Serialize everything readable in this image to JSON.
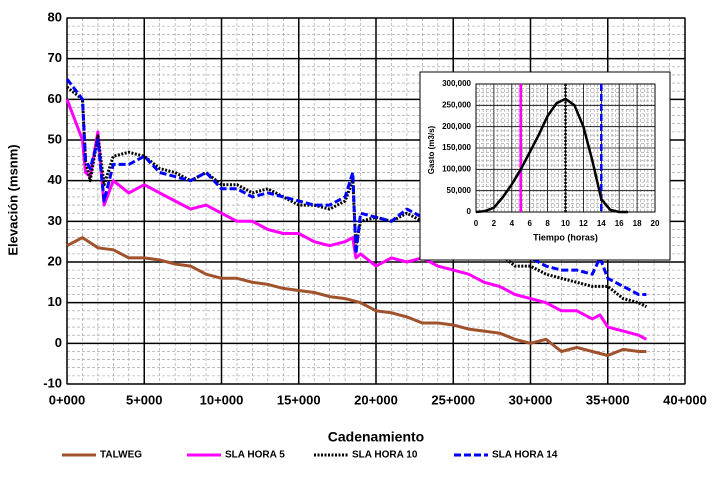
{
  "chart_data": [
    {
      "type": "line",
      "x_label": "Cadenamiento",
      "y_label": "Elevación (msnm)",
      "xlim": [
        0,
        40000
      ],
      "ylim": [
        -10,
        80
      ],
      "xticks": [
        {
          "value": 0,
          "label": "0+000"
        },
        {
          "value": 5000,
          "label": "5+000"
        },
        {
          "value": 10000,
          "label": "10+000"
        },
        {
          "value": 15000,
          "label": "15+000"
        },
        {
          "value": 20000,
          "label": "20+000"
        },
        {
          "value": 25000,
          "label": "25+000"
        },
        {
          "value": 30000,
          "label": "30+000"
        },
        {
          "value": 35000,
          "label": "35+000"
        },
        {
          "value": 40000,
          "label": "40+000"
        }
      ],
      "yticks": [
        -10,
        0,
        10,
        20,
        30,
        40,
        50,
        60,
        70,
        80
      ],
      "grid": true,
      "minor_grid": true,
      "legend": "bottom",
      "series": [
        {
          "name": "TALWEG",
          "color": "#a0522d",
          "style": "solid",
          "x": [
            0,
            1000,
            2000,
            3000,
            4000,
            5000,
            6000,
            7000,
            8000,
            9000,
            10000,
            11000,
            12000,
            13000,
            14000,
            15000,
            16000,
            17000,
            18000,
            19000,
            20000,
            21000,
            22000,
            23000,
            24000,
            25000,
            26000,
            27000,
            28000,
            29000,
            30000,
            31000,
            32000,
            33000,
            34000,
            35000,
            36000,
            37000,
            37500
          ],
          "values": [
            24,
            26,
            23.5,
            23,
            21,
            21,
            20.5,
            19.5,
            19,
            17,
            16,
            16,
            15,
            14.5,
            13.5,
            13,
            12.5,
            11.5,
            11,
            10,
            8,
            7.5,
            6.5,
            5,
            5,
            4.5,
            3.5,
            3,
            2.5,
            1,
            0,
            1,
            -2,
            -1,
            -2,
            -3,
            -1.5,
            -2,
            -2
          ]
        },
        {
          "name": "SLA HORA 5",
          "color": "#ff00ff",
          "style": "solid",
          "x": [
            0,
            1000,
            1200,
            1500,
            2000,
            2400,
            3000,
            4000,
            5000,
            6000,
            7000,
            8000,
            9000,
            10000,
            11000,
            12000,
            13000,
            14000,
            15000,
            16000,
            17000,
            18000,
            18500,
            18700,
            19000,
            20000,
            21000,
            22000,
            23000,
            24000,
            25000,
            26000,
            27000,
            28000,
            29000,
            30000,
            31000,
            32000,
            33000,
            34000,
            34500,
            35000,
            36000,
            37000,
            37500
          ],
          "values": [
            60,
            50,
            42,
            41,
            52,
            34,
            40,
            37,
            39,
            37,
            35,
            33,
            34,
            32,
            30,
            30,
            28,
            27,
            27,
            25,
            24,
            25,
            26,
            21,
            22,
            19,
            21,
            20,
            21,
            19,
            18,
            17,
            15,
            14,
            12,
            11,
            10,
            8,
            8,
            6,
            7,
            4,
            3,
            2,
            1
          ]
        },
        {
          "name": "SLA HORA 10",
          "color": "#000000",
          "style": "dotted",
          "x": [
            0,
            1000,
            1200,
            1500,
            2000,
            2400,
            3000,
            4000,
            5000,
            6000,
            7000,
            8000,
            9000,
            10000,
            11000,
            12000,
            13000,
            14000,
            15000,
            16000,
            17000,
            18000,
            18500,
            18700,
            19000,
            20000,
            21000,
            22000,
            23000,
            24000,
            25000,
            26000,
            27000,
            28000,
            29000,
            30000,
            31000,
            32000,
            33000,
            34000,
            35000,
            36000,
            37000,
            37500
          ],
          "values": [
            63,
            60,
            45,
            40,
            51,
            39,
            46,
            47,
            46,
            43,
            42,
            40,
            42,
            39,
            39,
            37,
            38,
            36,
            34,
            34,
            33,
            35,
            40,
            24,
            30,
            31,
            30,
            32,
            30,
            28,
            27,
            25,
            23,
            22,
            19,
            19,
            17,
            16,
            15,
            14,
            14,
            11,
            10,
            9
          ]
        },
        {
          "name": "SLA HORA 14",
          "color": "#0000ff",
          "style": "dashed",
          "x": [
            0,
            1000,
            1200,
            1500,
            2000,
            2400,
            3000,
            4000,
            5000,
            6000,
            7000,
            8000,
            9000,
            10000,
            11000,
            12000,
            13000,
            14000,
            15000,
            16000,
            17000,
            18000,
            18500,
            18700,
            19000,
            20000,
            21000,
            22000,
            23000,
            24000,
            25000,
            26000,
            27000,
            28000,
            29000,
            30000,
            31000,
            32000,
            33000,
            34000,
            34500,
            35000,
            36000,
            37000,
            37500
          ],
          "values": [
            65,
            60,
            45,
            43,
            50,
            35,
            44,
            44,
            46,
            42,
            41,
            40,
            42,
            38,
            38,
            36,
            37,
            36,
            35,
            34,
            34,
            36,
            42,
            22,
            32,
            31,
            30,
            33,
            31,
            29,
            28,
            26,
            25,
            24,
            21,
            21,
            19,
            18,
            18,
            17,
            21,
            16,
            14,
            12,
            12
          ]
        }
      ]
    },
    {
      "type": "line",
      "x_label": "Tiempo (horas)",
      "y_label": "Gasto (m3/s)",
      "xlim": [
        0,
        20
      ],
      "ylim": [
        0,
        300000
      ],
      "xticks": [
        0,
        2,
        4,
        6,
        8,
        10,
        12,
        14,
        16,
        18,
        20
      ],
      "yticks": [
        0,
        {
          "value": 50000,
          "label": "50,000"
        },
        {
          "value": 100000,
          "label": "100,000"
        },
        {
          "value": 150000,
          "label": "150,000"
        },
        {
          "value": 200000,
          "label": "200,000"
        },
        {
          "value": 250000,
          "label": "250,000"
        },
        {
          "value": 300000,
          "label": "300,000"
        }
      ],
      "grid": true,
      "minor_grid": true,
      "series": [
        {
          "color": "#000000",
          "style": "solid",
          "x": [
            0,
            1,
            2,
            3,
            4,
            5,
            6,
            7,
            8,
            9,
            10,
            11,
            12,
            13,
            14,
            15,
            16,
            17
          ],
          "values": [
            0,
            2000,
            10000,
            35000,
            65000,
            100000,
            140000,
            180000,
            225000,
            255000,
            265000,
            250000,
            200000,
            120000,
            30000,
            5000,
            0,
            0
          ]
        }
      ],
      "vlines": [
        {
          "x": 5,
          "color": "#ff00ff",
          "style": "solid"
        },
        {
          "x": 10,
          "color": "#000000",
          "style": "dotted"
        },
        {
          "x": 14,
          "color": "#0000ff",
          "style": "dashed"
        }
      ]
    }
  ]
}
